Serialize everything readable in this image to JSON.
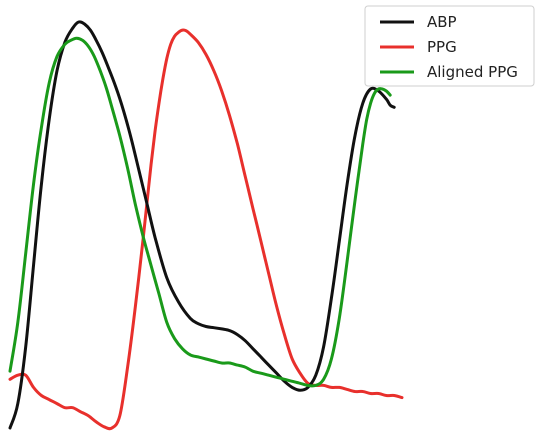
{
  "chart_data": {
    "type": "line",
    "title": "",
    "xlabel": "",
    "ylabel": "",
    "xlim": [
      0,
      100
    ],
    "ylim": [
      0,
      100
    ],
    "grid": false,
    "axes_visible": false,
    "legend": {
      "placement": "top-right",
      "entries": [
        "ABP",
        "PPG",
        "Aligned PPG"
      ]
    },
    "series": [
      {
        "name": "ABP",
        "color": "#111111",
        "x": [
          0,
          2,
          4,
          6,
          8,
          10,
          12,
          14,
          16,
          17.5,
          19,
          20.5,
          22,
          23.5,
          25,
          27,
          29,
          31,
          33,
          35,
          37,
          40,
          43,
          46,
          48,
          50,
          52,
          54,
          56,
          58,
          60,
          62,
          64,
          66,
          68,
          70,
          72,
          74,
          76,
          78,
          80,
          82,
          84,
          86,
          88,
          90,
          92,
          94,
          96,
          97,
          98
        ],
        "y": [
          0,
          6,
          20,
          40,
          60,
          76,
          88,
          95,
          98.5,
          100,
          99.5,
          98,
          95.5,
          92.5,
          89,
          84,
          78,
          71,
          63,
          55,
          47,
          37,
          31,
          27,
          25.7,
          25,
          24.7,
          24.4,
          24,
          23,
          21.5,
          19.5,
          17.5,
          15.5,
          13.5,
          11.5,
          10,
          9.3,
          10,
          13,
          20,
          32,
          46,
          60,
          72,
          80,
          83.5,
          83,
          81,
          79.5,
          79
        ]
      },
      {
        "name": "PPG",
        "color": "#e8302c",
        "x": [
          0,
          2,
          4,
          6,
          8,
          10,
          12,
          14,
          16,
          18,
          20,
          22,
          24,
          26,
          28,
          30,
          32,
          34,
          35,
          36,
          37,
          38,
          39,
          40,
          41,
          42,
          43,
          44,
          45,
          46,
          48,
          50,
          52,
          54,
          56,
          58,
          60,
          61,
          62,
          63,
          64,
          65,
          66,
          68,
          70,
          72,
          74,
          76,
          78,
          80,
          82,
          84,
          86,
          88,
          90,
          92,
          94,
          96,
          98,
          100
        ],
        "y": [
          12,
          13,
          13,
          10,
          8,
          7,
          6,
          5,
          5,
          4,
          3,
          1.5,
          0.3,
          0,
          3,
          15,
          30,
          47,
          56,
          65,
          73,
          80,
          86,
          91,
          94.5,
          96.5,
          97.5,
          98,
          97.8,
          97,
          95,
          92,
          88,
          83,
          77,
          70,
          62,
          58,
          54,
          50,
          46,
          42,
          38,
          30,
          23,
          17,
          13.5,
          11,
          10.5,
          10.5,
          10,
          10,
          9.5,
          9,
          9,
          8.5,
          8.5,
          8,
          8,
          7.5
        ]
      },
      {
        "name": "Aligned PPG",
        "color": "#1a9a1a",
        "x": [
          0,
          2,
          4,
          6,
          8,
          10,
          12,
          14,
          15.5,
          17,
          18.5,
          20,
          21.5,
          23,
          24.5,
          26,
          28,
          30,
          32,
          34,
          36,
          38,
          40,
          42,
          44,
          46,
          48,
          50,
          52,
          54,
          56,
          58,
          60,
          62,
          64,
          66,
          68,
          70,
          72,
          74,
          76,
          78,
          80,
          82,
          84,
          86,
          88,
          90,
          91,
          92,
          93,
          94,
          95,
          96,
          97
        ],
        "y": [
          14,
          26,
          43,
          60,
          74,
          85,
          91.5,
          94.5,
          95.5,
          96,
          95.5,
          94,
          91.5,
          88,
          84,
          79,
          72,
          64,
          55,
          47,
          40,
          33,
          26,
          22,
          19.5,
          18,
          17.5,
          17,
          16.5,
          16,
          16,
          15.5,
          15,
          14,
          13.5,
          13,
          12.5,
          12,
          11.5,
          11,
          10.5,
          10.5,
          12,
          17,
          27,
          41,
          56,
          70,
          76,
          80,
          82.5,
          83.5,
          83.5,
          83,
          82
        ]
      }
    ]
  }
}
